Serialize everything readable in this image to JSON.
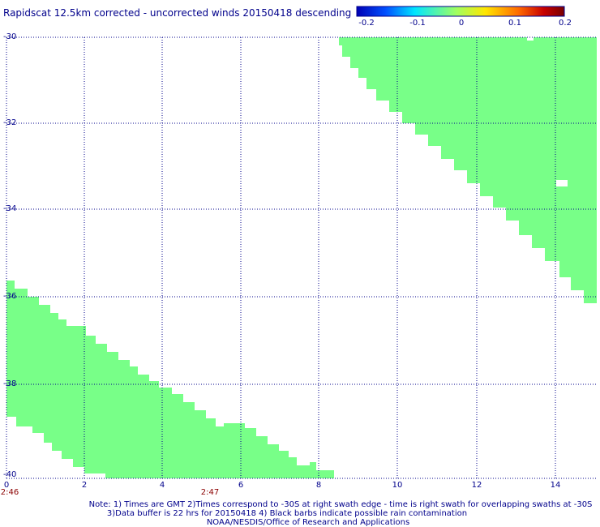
{
  "title": "Rapidscat 12.5km corrected - uncorrected winds 20150418 descending",
  "colorbar": {
    "labels": [
      "-0.2",
      "-0.1",
      "0",
      "0.1",
      "0.2"
    ],
    "colors": [
      "#0000b4",
      "#0050ff",
      "#00e6ff",
      "#a0ff60",
      "#ffe600",
      "#ff6a00",
      "#c80000",
      "#780000"
    ]
  },
  "map": {
    "lat_range": [
      -40,
      -30
    ],
    "lon_range": [
      0,
      15
    ],
    "y_ticks": [
      "-30",
      "-32",
      "-34",
      "-36",
      "-38",
      "-40"
    ],
    "x_ticks": [
      "0",
      "2",
      "4",
      "6",
      "8",
      "10",
      "12",
      "14"
    ],
    "time_labels": [
      "2:46",
      "2:47"
    ],
    "swath_color": "#78ff88",
    "grid_color": "#00008b"
  },
  "notes": {
    "line1": "Note: 1) Times are GMT 2)Times correspond to -30S at right swath edge - time is right swath for overlapping swaths at -30S",
    "line2": "3)Data buffer is 22 hrs for 20150418 4) Black barbs indicate possible rain contamination",
    "line3": "NOAA/NESDIS/Office of Research and Applications"
  }
}
